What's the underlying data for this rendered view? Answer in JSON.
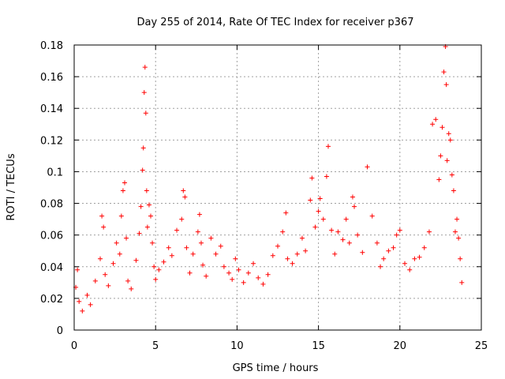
{
  "chart_data": {
    "type": "scatter",
    "title": "Day 255 of 2014, Rate Of TEC Index for receiver p367",
    "xlabel": "GPS time / hours",
    "ylabel": "ROTI / TECUs",
    "xlim": [
      0,
      25
    ],
    "ylim": [
      0,
      0.18
    ],
    "x_ticks": [
      "0",
      "5",
      "10",
      "15",
      "20",
      "25"
    ],
    "y_ticks": [
      "0",
      "0.02",
      "0.04",
      "0.06",
      "0.08",
      "0.1",
      "0.12",
      "0.14",
      "0.16",
      "0.18"
    ],
    "grid": true,
    "marker": "+",
    "color": "#ff0000",
    "series": [
      {
        "x": [
          0.1,
          0.2,
          0.3,
          0.5,
          0.8,
          1.0,
          1.3,
          1.6,
          1.7,
          1.8,
          1.9,
          2.1,
          2.4,
          2.6,
          2.8,
          2.9,
          3.0,
          3.1,
          3.2,
          3.3,
          3.5,
          3.8,
          4.0,
          4.1,
          4.2,
          4.25,
          4.3,
          4.35,
          4.4,
          4.45,
          4.5,
          4.6,
          4.7,
          4.8,
          4.9,
          5.0,
          5.2,
          5.5,
          5.8,
          6.0,
          6.3,
          6.6,
          6.7,
          6.8,
          6.9,
          7.1,
          7.3,
          7.6,
          7.7,
          7.8,
          7.9,
          8.1,
          8.4,
          8.7,
          9.0,
          9.2,
          9.5,
          9.7,
          9.9,
          10.1,
          10.4,
          10.7,
          11.0,
          11.3,
          11.6,
          11.9,
          12.2,
          12.5,
          12.8,
          13.0,
          13.1,
          13.4,
          13.7,
          14.0,
          14.2,
          14.5,
          14.6,
          14.8,
          15.0,
          15.1,
          15.3,
          15.5,
          15.6,
          15.8,
          16.0,
          16.2,
          16.5,
          16.7,
          16.9,
          17.1,
          17.2,
          17.4,
          17.7,
          18.0,
          18.3,
          18.6,
          18.8,
          19.0,
          19.3,
          19.6,
          19.8,
          20.0,
          20.3,
          20.6,
          20.9,
          21.2,
          21.5,
          21.8,
          22.0,
          22.2,
          22.4,
          22.5,
          22.6,
          22.7,
          22.8,
          22.85,
          22.9,
          23.0,
          23.1,
          23.2,
          23.3,
          23.4,
          23.5,
          23.6,
          23.7,
          23.8
        ],
        "y": [
          0.027,
          0.038,
          0.018,
          0.012,
          0.022,
          0.016,
          0.031,
          0.045,
          0.072,
          0.065,
          0.035,
          0.028,
          0.042,
          0.055,
          0.048,
          0.072,
          0.088,
          0.093,
          0.058,
          0.031,
          0.026,
          0.044,
          0.061,
          0.078,
          0.101,
          0.115,
          0.15,
          0.166,
          0.137,
          0.088,
          0.065,
          0.079,
          0.072,
          0.055,
          0.04,
          0.032,
          0.038,
          0.043,
          0.052,
          0.047,
          0.063,
          0.07,
          0.088,
          0.084,
          0.052,
          0.036,
          0.048,
          0.062,
          0.073,
          0.055,
          0.041,
          0.034,
          0.058,
          0.048,
          0.053,
          0.04,
          0.036,
          0.032,
          0.045,
          0.038,
          0.03,
          0.036,
          0.042,
          0.033,
          0.029,
          0.035,
          0.047,
          0.053,
          0.062,
          0.074,
          0.045,
          0.042,
          0.048,
          0.058,
          0.05,
          0.082,
          0.096,
          0.065,
          0.075,
          0.083,
          0.07,
          0.097,
          0.116,
          0.063,
          0.048,
          0.062,
          0.057,
          0.07,
          0.055,
          0.084,
          0.078,
          0.06,
          0.049,
          0.103,
          0.072,
          0.055,
          0.04,
          0.045,
          0.05,
          0.052,
          0.06,
          0.063,
          0.042,
          0.038,
          0.045,
          0.046,
          0.052,
          0.062,
          0.13,
          0.133,
          0.095,
          0.11,
          0.128,
          0.163,
          0.179,
          0.155,
          0.107,
          0.124,
          0.12,
          0.098,
          0.088,
          0.062,
          0.07,
          0.058,
          0.045,
          0.03
        ]
      }
    ]
  }
}
